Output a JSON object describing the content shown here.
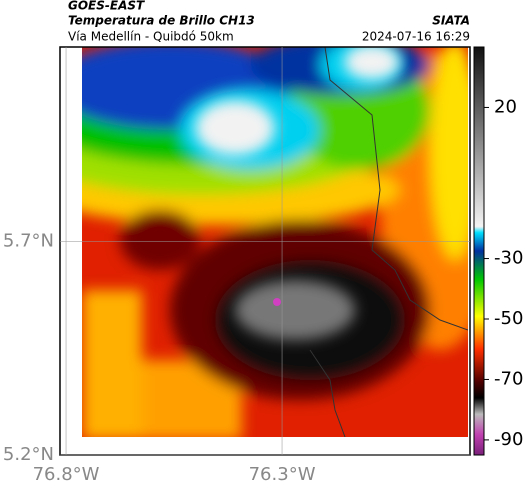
{
  "header": {
    "product": "GOES-EAST",
    "title": "Temperatura de Brillo CH13",
    "source": "SIATA",
    "region": "Vía Medellín - Quibdó 50km",
    "timestamp": "2024-07-16 16:29"
  },
  "map": {
    "xlim": [
      -76.814,
      -75.865
    ],
    "ylim": [
      5.2,
      6.155
    ],
    "xticks": [
      {
        "value": -76.8,
        "label": "76.8°W"
      },
      {
        "value": -76.3,
        "label": "76.3°W"
      }
    ],
    "yticks": [
      {
        "value": 5.2,
        "label": "5.2°N"
      },
      {
        "value": 5.7,
        "label": "5.7°N"
      }
    ]
  },
  "colorbar": {
    "clim": [
      -95,
      40
    ],
    "ticks": [
      20,
      -30,
      -50,
      -70,
      -90
    ]
  }
}
